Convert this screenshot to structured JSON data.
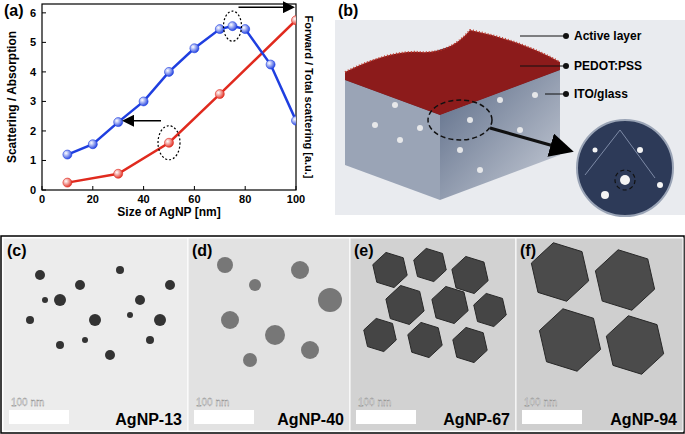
{
  "chart_data": {
    "type": "line",
    "title": "(a)",
    "x_label": "Size of AgNP [nm]",
    "y_label": "Scattering / Absorption",
    "y2_label": "Forward / Total scattering [a.u.]",
    "xlim": [
      0,
      100
    ],
    "xticks": [
      0,
      20,
      40,
      60,
      80,
      100
    ],
    "ylim": [
      0,
      6.3
    ],
    "yticks": [
      0,
      1,
      2,
      3,
      4,
      5,
      6
    ],
    "y2lim": [
      0,
      6.3
    ],
    "grid": false,
    "series": [
      {
        "name": "Scattering / Absorption",
        "color": "#e02a1e",
        "marker": "circle",
        "line_style": "solid",
        "x": [
          10,
          30,
          50,
          70,
          100
        ],
        "values": [
          0.25,
          0.55,
          1.6,
          3.25,
          5.75
        ]
      },
      {
        "name": "Forward / Total scattering",
        "color": "#1f3fe0",
        "marker": "circle",
        "line_style": "solid",
        "axis": "y2",
        "x": [
          10,
          20,
          30,
          40,
          50,
          60,
          70,
          75,
          80,
          90,
          100
        ],
        "values": [
          1.2,
          1.55,
          2.3,
          3.0,
          4.0,
          4.8,
          5.45,
          5.55,
          5.45,
          4.25,
          2.35
        ]
      }
    ]
  },
  "diagram": {
    "label": "(b)",
    "layers": [
      "Active layer",
      "PEDOT:PSS",
      "ITO/glass"
    ]
  },
  "images": [
    {
      "label": "(c)",
      "name": "AgNP-13",
      "scale_bar": "100 nm"
    },
    {
      "label": "(d)",
      "name": "AgNP-40",
      "scale_bar": "100 nm"
    },
    {
      "label": "(e)",
      "name": "AgNP-67",
      "scale_bar": "100 nm"
    },
    {
      "label": "(f)",
      "name": "AgNP-94",
      "scale_bar": "100 nm"
    }
  ]
}
